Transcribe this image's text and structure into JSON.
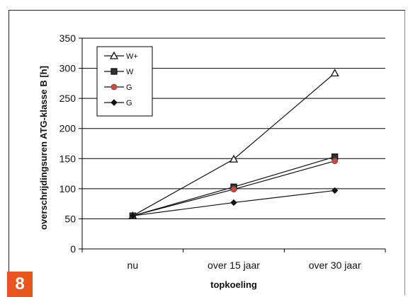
{
  "figure_number": "8",
  "chart_data": {
    "type": "line",
    "categories": [
      "nu",
      "over 15 jaar",
      "over 30 jaar"
    ],
    "series": [
      {
        "name": "W+",
        "values": [
          55,
          149,
          292
        ],
        "marker": "triangle",
        "color": "#111111"
      },
      {
        "name": "W",
        "values": [
          55,
          103,
          153
        ],
        "marker": "square",
        "color": "#111111"
      },
      {
        "name": "G",
        "values": [
          55,
          99,
          146
        ],
        "marker": "circle",
        "color": "#d04a3c"
      },
      {
        "name": "G",
        "values": [
          55,
          77,
          97
        ],
        "marker": "diamond",
        "color": "#111111"
      }
    ],
    "xlabel": "topkoeling",
    "ylabel": "overschrijdingsuren ATG-klasse B [h]",
    "ylim": [
      0,
      350
    ],
    "yticks": [
      0,
      50,
      100,
      150,
      200,
      250,
      300,
      350
    ],
    "grid": true,
    "legend_position": "top-left"
  }
}
